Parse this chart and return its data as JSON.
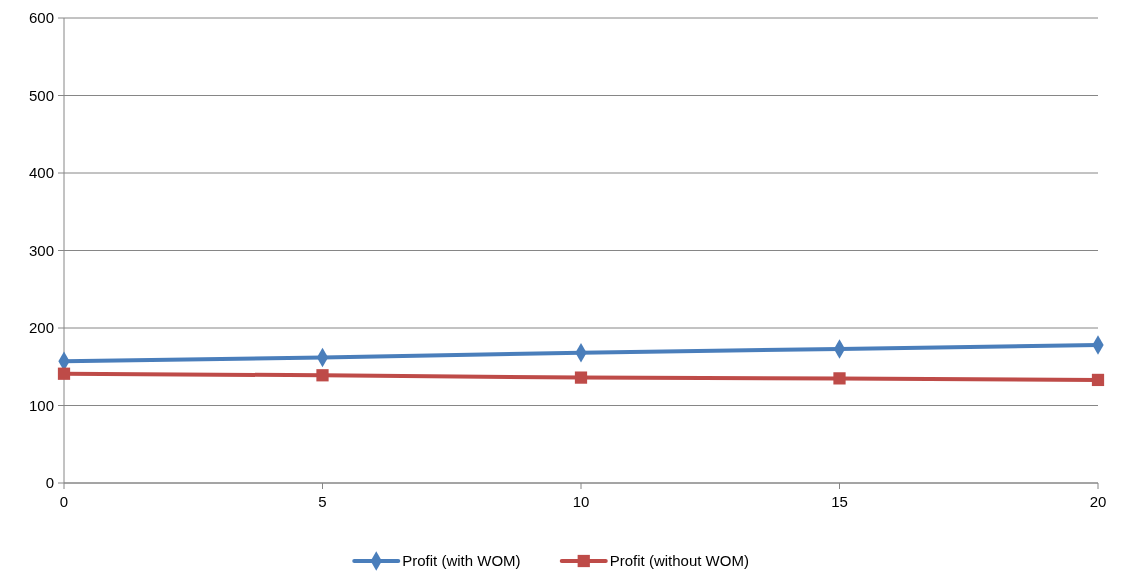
{
  "chart_data": {
    "type": "line",
    "x": [
      0,
      5,
      10,
      15,
      20
    ],
    "xlim": [
      0,
      20
    ],
    "xticks": [
      0,
      5,
      10,
      15,
      20
    ],
    "ylim": [
      0,
      600
    ],
    "yticks": [
      0,
      100,
      200,
      300,
      400,
      500,
      600
    ],
    "grid": "y",
    "legend": "bottom",
    "line_style": "solid",
    "series": [
      {
        "name": "Profit (with WOM)",
        "color": "#4a7ebb",
        "marker": "diamond",
        "values": [
          157,
          162,
          168,
          173,
          178
        ]
      },
      {
        "name": "Profit (without WOM)",
        "color": "#be4b48",
        "marker": "square",
        "values": [
          141,
          139,
          136,
          135,
          133
        ]
      }
    ]
  }
}
